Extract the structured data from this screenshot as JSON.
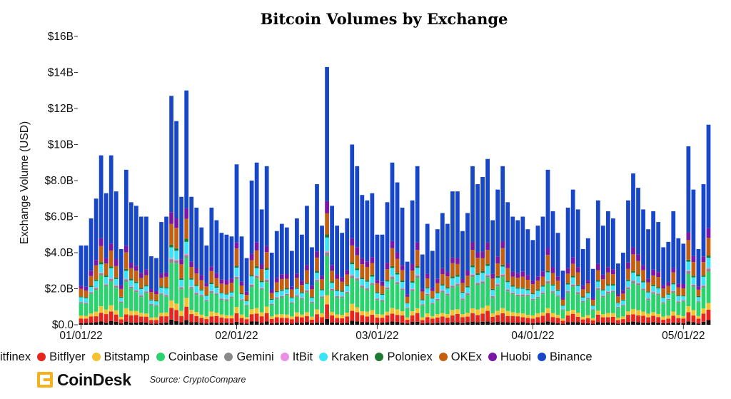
{
  "chart_data": {
    "type": "bar",
    "stacked": true,
    "title": "Bitcoin Volumes by Exchange",
    "ylabel": "Exchange Volume (USD)",
    "xlabel": "",
    "ylim": [
      0,
      16
    ],
    "y_unit": "billions USD",
    "yticks": [
      "$0.0",
      "$2.0B",
      "$4.0B",
      "$6.0B",
      "$8.0B",
      "$10B",
      "$12B",
      "$14B",
      "$16B"
    ],
    "ytick_values": [
      0,
      2,
      4,
      6,
      8,
      10,
      12,
      14,
      16
    ],
    "xticks": [
      "01/01/22",
      "02/01/22",
      "03/01/22",
      "04/01/22",
      "05/01/22"
    ],
    "xtick_days": [
      "2022-01-01",
      "2022-02-01",
      "2022-03-01",
      "2022-04-01",
      "2022-05-01"
    ],
    "x_first_date": "2022-01-01",
    "totals": [
      4.4,
      4.4,
      5.9,
      7.0,
      9.4,
      7.3,
      9.4,
      7.4,
      4.2,
      8.6,
      6.8,
      6.6,
      6.0,
      6.0,
      3.8,
      3.7,
      5.7,
      6.0,
      12.7,
      11.3,
      7.1,
      13.0,
      7.1,
      6.5,
      5.4,
      4.4,
      6.5,
      5.8,
      5.1,
      5.0,
      4.9,
      8.9,
      4.9,
      3.7,
      8.0,
      9.0,
      6.4,
      8.8,
      4.0,
      5.2,
      5.6,
      5.4,
      4.1,
      5.9,
      5.0,
      6.6,
      4.3,
      7.8,
      5.5,
      14.3,
      6.6,
      5.5,
      5.1,
      5.9,
      10.0,
      8.8,
      7.2,
      6.9,
      7.3,
      5.0,
      5.0,
      6.8,
      9.0,
      7.9,
      6.5,
      3.5,
      6.9,
      8.8,
      3.9,
      5.6,
      4.1,
      5.3,
      6.2,
      5.6,
      7.4,
      7.4,
      5.2,
      6.2,
      8.8,
      7.8,
      8.2,
      9.2,
      5.8,
      7.5,
      8.8,
      6.8,
      6.0,
      5.8,
      6.0,
      5.3,
      4.7,
      5.5,
      6.0,
      8.6,
      6.3,
      5.1,
      3.0,
      6.5,
      7.5,
      6.4,
      4.2,
      4.8,
      3.1,
      6.9,
      5.5,
      6.3,
      5.9,
      3.4,
      4.0,
      6.9,
      8.4,
      7.6,
      6.4,
      5.3,
      6.3,
      5.7,
      4.3,
      4.6,
      6.3,
      4.8,
      4.5,
      9.9,
      7.5,
      4.2,
      7.8,
      11.1
    ],
    "series": [
      {
        "name": "Bitfinex",
        "share": 0.02,
        "color": "#111111"
      },
      {
        "name": "Bitflyer",
        "share": 0.055,
        "color": "#e8241e"
      },
      {
        "name": "Bitstamp",
        "share": 0.035,
        "color": "#f6c12f"
      },
      {
        "name": "Coinbase",
        "share": 0.17,
        "color": "#2bd36f"
      },
      {
        "name": "Gemini",
        "share": 0.015,
        "color": "#8a8a8a"
      },
      {
        "name": "ItBit",
        "share": 0.005,
        "color": "#e98fe6"
      },
      {
        "name": "Kraken",
        "share": 0.05,
        "color": "#38e4f5"
      },
      {
        "name": "Poloniex",
        "share": 0.012,
        "color": "#1e7a33"
      },
      {
        "name": "OKEx",
        "share": 0.095,
        "color": "#c55f10"
      },
      {
        "name": "Huobi",
        "share": 0.045,
        "color": "#7b17a8"
      },
      {
        "name": "Binance",
        "share": 0.498,
        "color": "#1746c8"
      }
    ],
    "legend": [
      "itfinex",
      "Bitflyer",
      "Bitstamp",
      "Coinbase",
      "Gemini",
      "ItBit",
      "Kraken",
      "Poloniex",
      "OKEx",
      "Huobi",
      "Binance"
    ],
    "legend_placement": "bottom",
    "grid": false
  },
  "footer": {
    "brand": "CoinDesk",
    "source": "Source: CryptoCompare"
  },
  "colors": {
    "brand": "#f5b21c"
  }
}
